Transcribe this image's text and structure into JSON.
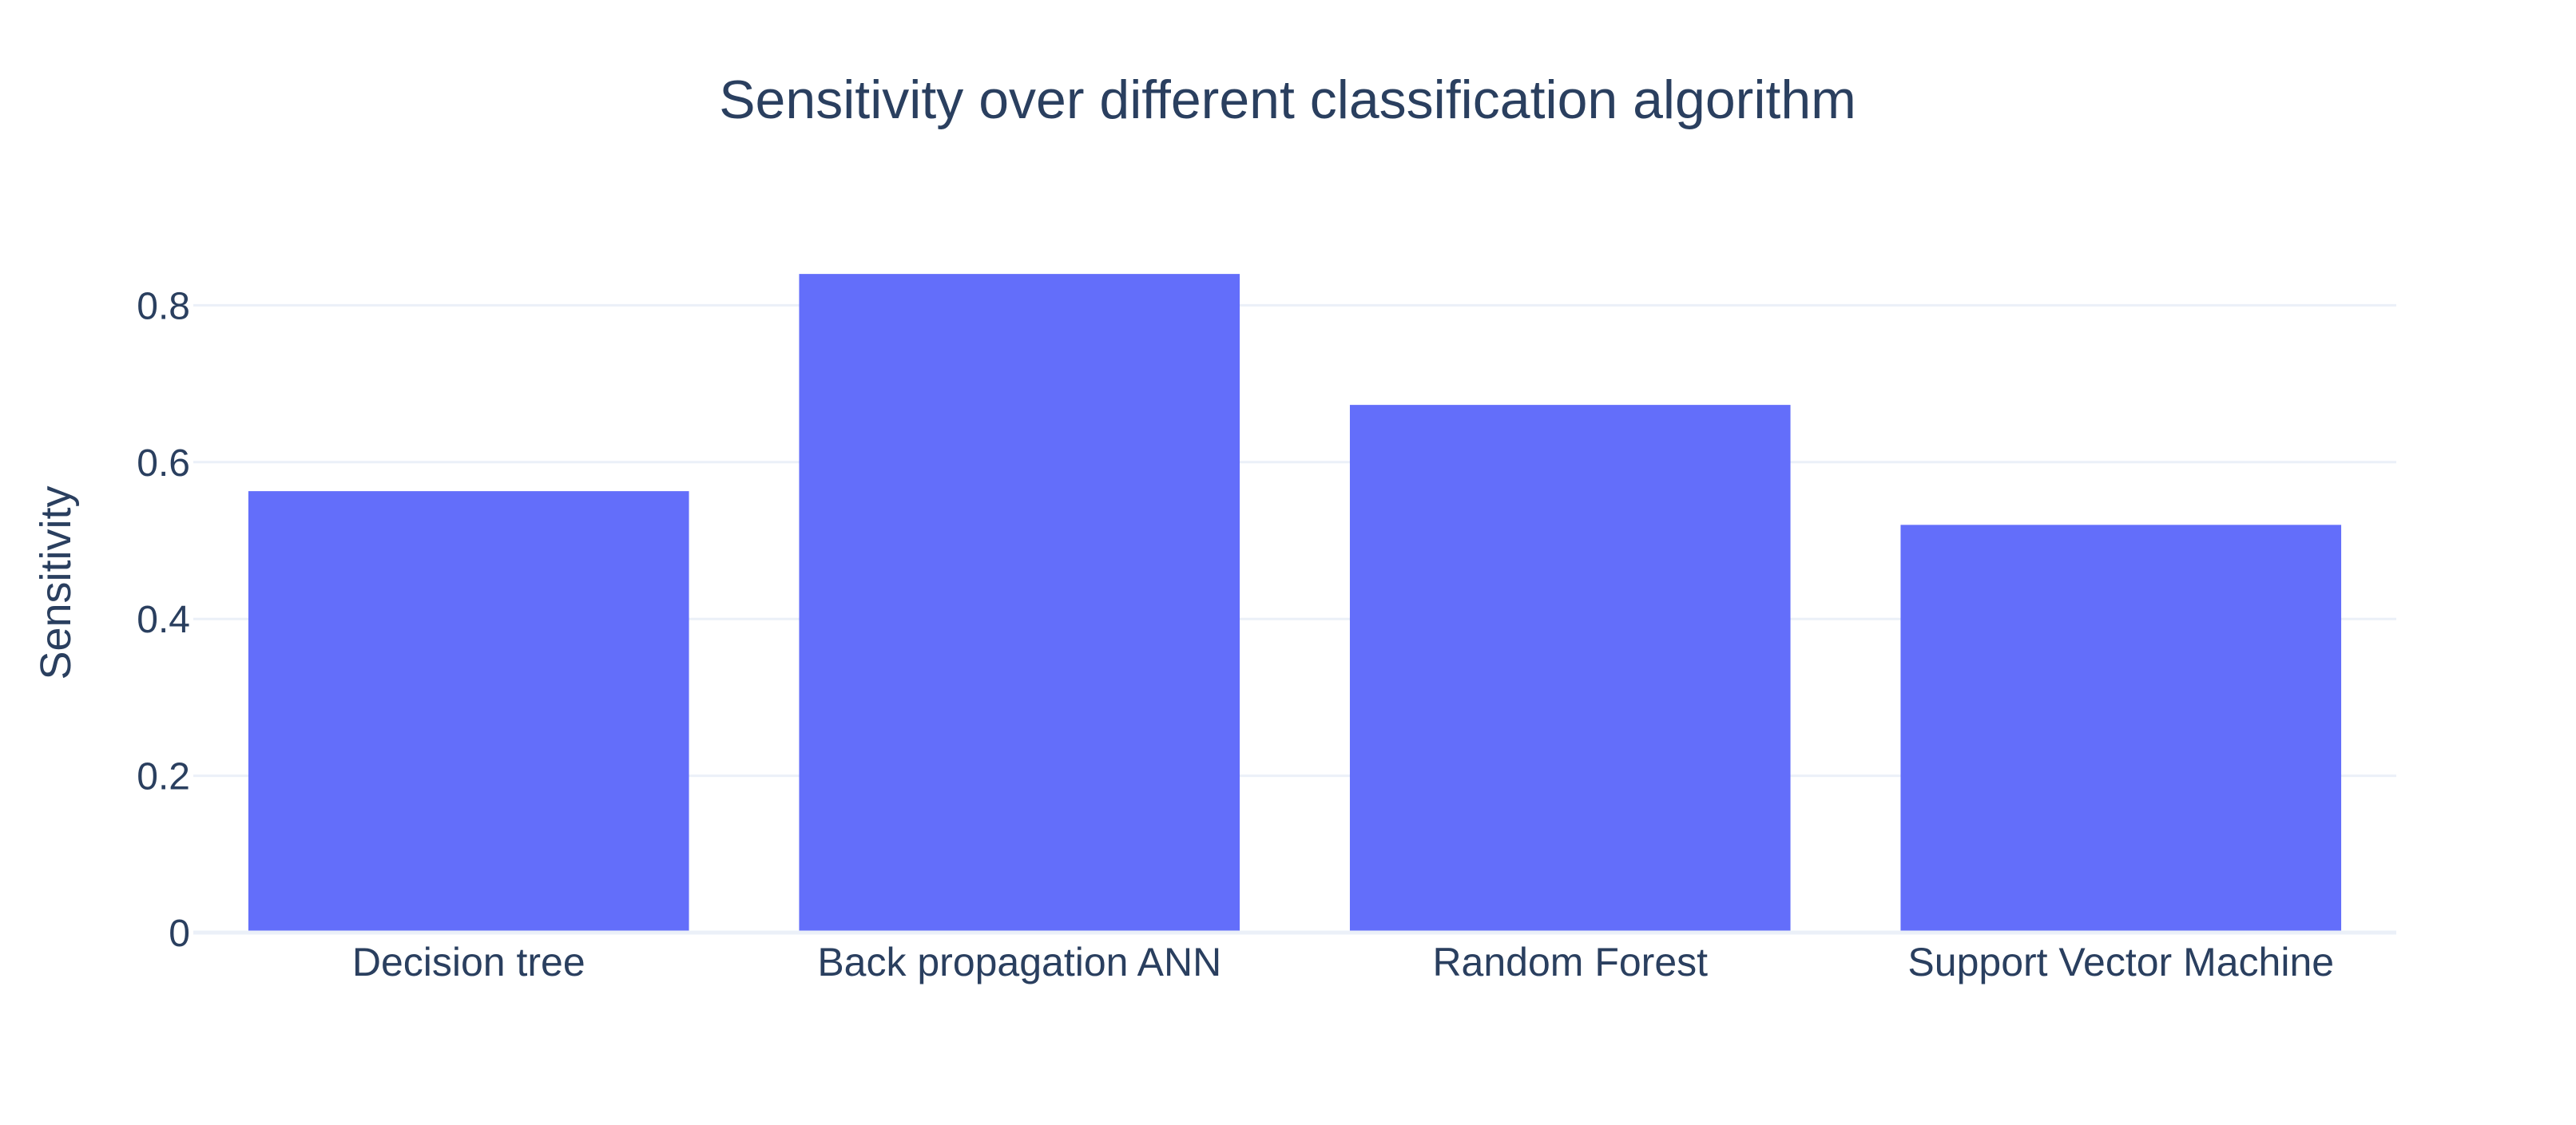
{
  "chart_data": {
    "type": "bar",
    "title": "Sensitivity over different classification algorithm",
    "xlabel": "",
    "ylabel": "Sensitivity",
    "categories": [
      "Decision tree",
      "Back propagation ANN",
      "Random Forest",
      "Support Vector Machine"
    ],
    "series": [
      {
        "values": [
          0.563,
          0.84,
          0.673,
          0.52
        ]
      }
    ],
    "ylim": [
      0,
      0.88
    ],
    "yticks": [
      0,
      0.2,
      0.4,
      0.6,
      0.8
    ],
    "ytick_labels": [
      "0",
      "0.2",
      "0.4",
      "0.6",
      "0.8"
    ],
    "grid": true,
    "legend": "none"
  },
  "colors": {
    "bar": "#636efa",
    "text": "#2a3f5f",
    "grid": "#ebf0f8",
    "background": "#ffffff"
  }
}
